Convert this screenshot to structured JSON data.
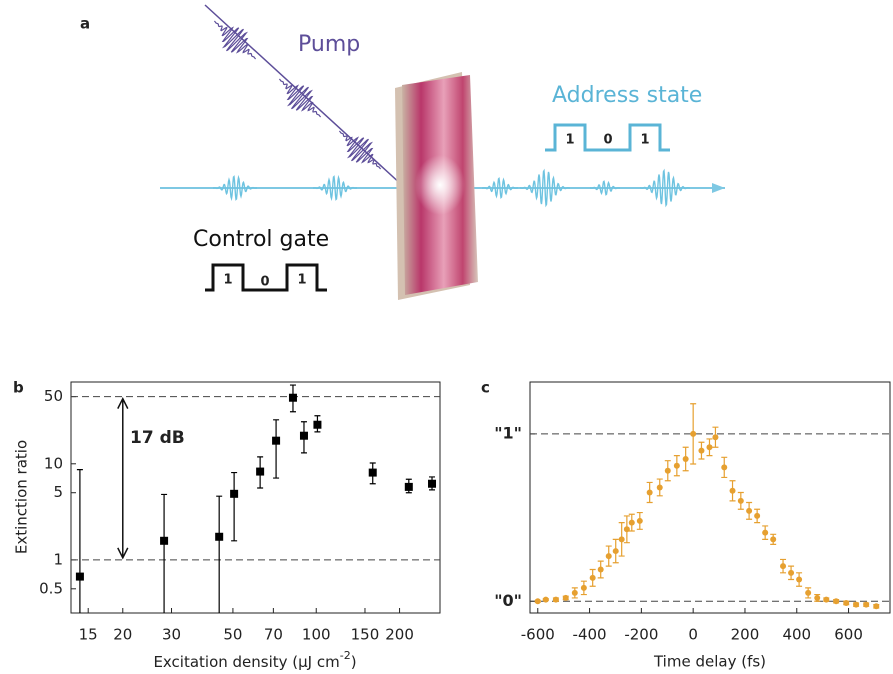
{
  "diagram": {
    "label": "a",
    "pump": "Pump",
    "address_state": {
      "title": "Address state",
      "bits": [
        "1",
        "0",
        "1"
      ]
    },
    "control_gate": {
      "title": "Control gate",
      "bits": [
        "1",
        "0",
        "1"
      ]
    }
  },
  "chart_data": [
    {
      "type": "errorbar",
      "panel_label": "b",
      "ylabel": "Extinction ratio",
      "xlabel": "Excitation density (μJ cm",
      "xlabel_sup": "-2",
      "xlabel_end": ")",
      "xscale": "log",
      "yscale": "log",
      "xlim": [
        13,
        280
      ],
      "ylim": [
        0.28,
        71
      ],
      "xticks": [
        15,
        20,
        30,
        50,
        70,
        100,
        150,
        200
      ],
      "yticks": [
        0.5,
        1,
        5,
        10,
        50
      ],
      "x": [
        14.0,
        28.2,
        44.6,
        50.5,
        62.7,
        71.6,
        82.4,
        90.3,
        101,
        160,
        216,
        262
      ],
      "values": [
        0.67,
        1.58,
        1.74,
        4.87,
        8.3,
        17.4,
        48.7,
        19.6,
        25.5,
        8.1,
        5.75,
        6.2
      ],
      "lower": [
        0.1,
        0.1,
        0.1,
        1.58,
        5.6,
        7.1,
        34.8,
        13,
        21.5,
        6.2,
        5.0,
        5.35
      ],
      "upper": [
        8.7,
        4.8,
        4.6,
        8.1,
        11.8,
        28.7,
        66,
        27.4,
        31.6,
        10.2,
        6.9,
        7.3
      ],
      "color": "#000000",
      "marker": "square",
      "hlines": [
        50,
        1
      ],
      "annotation": "17 dB"
    },
    {
      "type": "errorbar",
      "panel_label": "c",
      "xlabel": "Time delay (fs)",
      "xlim": [
        -630,
        760
      ],
      "ylim": [
        -0.07,
        1.31
      ],
      "xticks": [
        -600,
        -400,
        -200,
        0,
        200,
        400,
        600
      ],
      "yticks": [
        {
          "value": 1,
          "label": "\"1\""
        },
        {
          "value": 0,
          "label": "\"0\""
        }
      ],
      "grid": true,
      "x": [
        -600,
        -569,
        -530,
        -492,
        -457,
        -422,
        -388,
        -357,
        -326,
        -299,
        -276,
        -256,
        -237,
        -206,
        -168,
        -129,
        -98,
        -63,
        -29,
        0,
        32,
        63,
        86,
        120,
        152,
        184,
        216,
        247,
        278,
        309,
        347,
        378,
        409,
        444,
        479,
        514,
        552,
        591,
        629,
        668,
        707
      ],
      "values": [
        0.0,
        0.01,
        0.01,
        0.02,
        0.05,
        0.08,
        0.14,
        0.19,
        0.27,
        0.3,
        0.37,
        0.43,
        0.47,
        0.48,
        0.65,
        0.68,
        0.78,
        0.81,
        0.85,
        1.0,
        0.9,
        0.92,
        0.98,
        0.8,
        0.66,
        0.6,
        0.54,
        0.51,
        0.41,
        0.37,
        0.21,
        0.17,
        0.13,
        0.05,
        0.02,
        0.01,
        0.0,
        -0.01,
        -0.02,
        -0.02,
        -0.03
      ],
      "errors": [
        0.005,
        0.005,
        0.01,
        0.01,
        0.03,
        0.04,
        0.05,
        0.05,
        0.06,
        0.07,
        0.1,
        0.08,
        0.05,
        0.05,
        0.06,
        0.05,
        0.06,
        0.06,
        0.07,
        0.18,
        0.05,
        0.05,
        0.06,
        0.06,
        0.06,
        0.05,
        0.05,
        0.04,
        0.04,
        0.03,
        0.04,
        0.04,
        0.04,
        0.03,
        0.02,
        0.01,
        0.01,
        0.01,
        0.01,
        0.01,
        0.01
      ],
      "color": "#e6a030",
      "marker": "circle"
    }
  ]
}
